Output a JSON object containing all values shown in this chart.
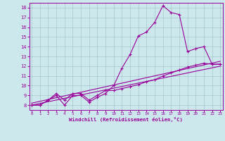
{
  "xlabel": "Windchill (Refroidissement éolien,°C)",
  "background_color": "#cce8ec",
  "line_color": "#990099",
  "x_ticks": [
    0,
    1,
    2,
    3,
    4,
    5,
    6,
    7,
    8,
    9,
    10,
    11,
    12,
    13,
    14,
    15,
    16,
    17,
    18,
    19,
    20,
    21,
    22,
    23
  ],
  "y_ticks": [
    8,
    9,
    10,
    11,
    12,
    13,
    14,
    15,
    16,
    17,
    18
  ],
  "xlim": [
    -0.3,
    23.3
  ],
  "ylim": [
    7.5,
    18.5
  ],
  "series": [
    {
      "x": [
        0,
        1,
        2,
        3,
        4,
        5,
        6,
        7,
        8,
        9,
        10,
        11,
        12,
        13,
        14,
        15,
        16,
        17,
        18,
        19,
        20,
        21,
        22,
        23
      ],
      "y": [
        8.0,
        8.0,
        8.5,
        9.0,
        8.0,
        9.0,
        9.0,
        8.3,
        8.8,
        9.2,
        10.0,
        11.8,
        13.2,
        15.1,
        15.5,
        16.5,
        18.2,
        17.5,
        17.3,
        13.5,
        13.8,
        14.0,
        12.2,
        12.2
      ]
    },
    {
      "x": [
        0,
        1,
        2,
        3,
        4,
        5,
        6,
        7,
        8,
        9,
        10,
        11,
        12,
        13,
        14,
        15,
        16,
        17,
        18,
        19,
        20,
        21,
        22,
        23
      ],
      "y": [
        8.0,
        8.0,
        8.5,
        9.2,
        8.5,
        9.2,
        9.2,
        8.5,
        9.0,
        9.5,
        9.5,
        9.7,
        9.9,
        10.1,
        10.4,
        10.6,
        11.0,
        11.3,
        11.6,
        11.9,
        12.1,
        12.3,
        12.2,
        12.2
      ]
    },
    {
      "x": [
        0,
        23
      ],
      "y": [
        8.0,
        12.0
      ]
    },
    {
      "x": [
        0,
        23
      ],
      "y": [
        8.2,
        12.5
      ]
    }
  ]
}
